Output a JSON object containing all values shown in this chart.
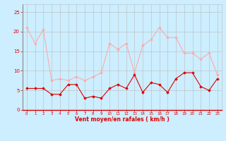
{
  "x": [
    0,
    1,
    2,
    3,
    4,
    5,
    6,
    7,
    8,
    9,
    10,
    11,
    12,
    13,
    14,
    15,
    16,
    17,
    18,
    19,
    20,
    21,
    22,
    23
  ],
  "wind_mean": [
    5.5,
    5.5,
    5.5,
    4.0,
    4.0,
    6.5,
    6.5,
    3.0,
    3.5,
    3.0,
    5.5,
    6.5,
    5.5,
    9.0,
    4.5,
    7.0,
    6.5,
    4.5,
    8.0,
    9.5,
    9.5,
    6.0,
    5.0,
    8.0
  ],
  "wind_gust": [
    21.0,
    17.0,
    20.5,
    7.5,
    8.0,
    7.5,
    8.5,
    7.5,
    8.5,
    9.5,
    17.0,
    15.5,
    17.0,
    9.5,
    16.5,
    18.0,
    21.0,
    18.5,
    18.5,
    14.5,
    14.5,
    13.0,
    14.5,
    9.0
  ],
  "color_mean": "#dd0000",
  "color_gust": "#ffaaaa",
  "bg_color": "#cceeff",
  "grid_color": "#bbbbbb",
  "xlabel": "Vent moyen/en rafales ( km/h )",
  "xlabel_color": "#dd0000",
  "tick_color": "#dd0000",
  "ylim": [
    0,
    27
  ],
  "yticks": [
    0,
    5,
    10,
    15,
    20,
    25
  ],
  "xlim": [
    -0.5,
    23.5
  ]
}
